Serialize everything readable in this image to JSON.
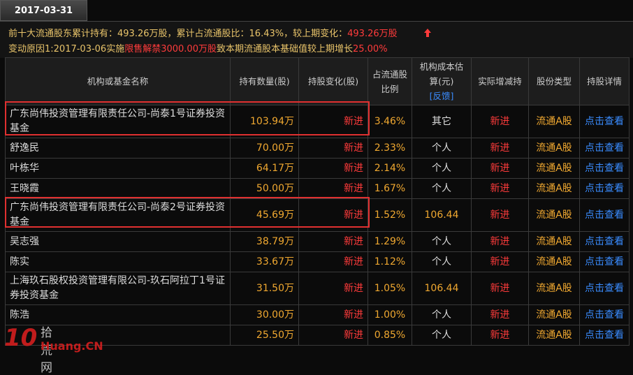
{
  "tab": "2017-03-31",
  "summary": {
    "line1": [
      {
        "text": "前十大流通股东累计持有：",
        "color": "#e9c46a"
      },
      {
        "text": "493.26万股",
        "color": "#e9c46a"
      },
      {
        "text": "，累计占流通股比：",
        "color": "#e9c46a"
      },
      {
        "text": "16.43%",
        "color": "#e9c46a"
      },
      {
        "text": "，较上期变化：",
        "color": "#e9c46a"
      },
      {
        "text": "493.26万股",
        "color": "#ff3b3b"
      }
    ],
    "line2": [
      {
        "text": "变动原因1:2017-03-06实施",
        "color": "#e9c46a"
      },
      {
        "text": "限售解禁3000.00万股",
        "color": "#ff3b3b"
      },
      {
        "text": "致本期流通股本基础值较上期增长",
        "color": "#e9c46a"
      },
      {
        "text": "25.00%",
        "color": "#ff3b3b"
      }
    ]
  },
  "table": {
    "headers": [
      "机构或基金名称",
      "持有数量(股)",
      "持股变化(股)",
      "占流通股比例",
      {
        "text": "机构成本估算(元)",
        "link": "[反馈]"
      },
      "实际增减持",
      "股份类型",
      "持股详情"
    ],
    "rows": [
      [
        "广东尚伟投资管理有限责任公司-尚泰1号证券投资基金",
        "103.94万",
        "新进",
        "3.46%",
        "其它",
        "新进",
        "流通A股",
        "点击查看"
      ],
      [
        "舒逸民",
        "70.00万",
        "新进",
        "2.33%",
        "个人",
        "新进",
        "流通A股",
        "点击查看"
      ],
      [
        "叶栋华",
        "64.17万",
        "新进",
        "2.14%",
        "个人",
        "新进",
        "流通A股",
        "点击查看"
      ],
      [
        "王晓霞",
        "50.00万",
        "新进",
        "1.67%",
        "个人",
        "新进",
        "流通A股",
        "点击查看"
      ],
      [
        "广东尚伟投资管理有限责任公司-尚泰2号证券投资基金",
        "45.69万",
        "新进",
        "1.52%",
        "106.44",
        "新进",
        "流通A股",
        "点击查看"
      ],
      [
        "吴志强",
        "38.79万",
        "新进",
        "1.29%",
        "个人",
        "新进",
        "流通A股",
        "点击查看"
      ],
      [
        "陈实",
        "33.67万",
        "新进",
        "1.12%",
        "个人",
        "新进",
        "流通A股",
        "点击查看"
      ],
      [
        "上海玖石股权投资管理有限公司-玖石阿拉丁1号证券投资基金",
        "31.50万",
        "新进",
        "1.05%",
        "106.44",
        "新进",
        "流通A股",
        "点击查看"
      ],
      [
        "陈浩",
        "30.00万",
        "新进",
        "1.00%",
        "个人",
        "新进",
        "流通A股",
        "点击查看"
      ],
      [
        null,
        "25.50万",
        "新进",
        "0.85%",
        "个人",
        "新进",
        "流通A股",
        "点击查看"
      ]
    ]
  },
  "watermark": {
    "logo": "10",
    "name": "拾荒网",
    "domain": "Huang.CN"
  }
}
